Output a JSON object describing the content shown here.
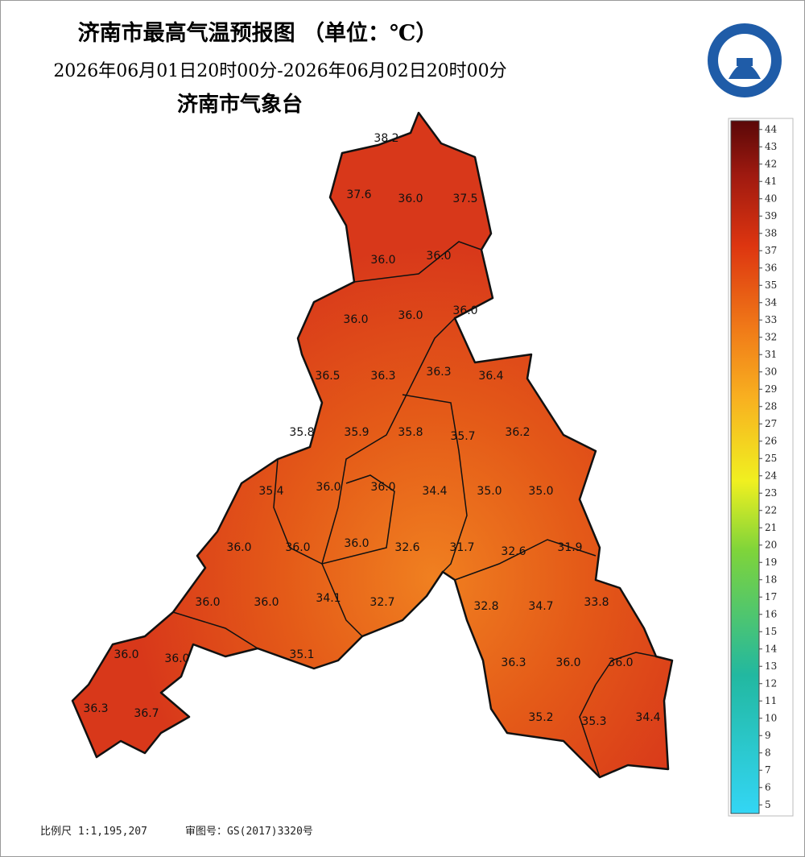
{
  "header": {
    "title": "济南市最高气温预报图 （单位：℃）",
    "subtitle": "2026年06月01日20时00分-2026年06月02日20时00分",
    "org": "济南市气象台"
  },
  "stations": [
    "38.2",
    "37.6",
    "36.0",
    "37.5",
    "36.0",
    "36.0",
    "36.0",
    "36.0",
    "36.0",
    "36.5",
    "36.3",
    "36.3",
    "36.4",
    "35.8",
    "35.9",
    "35.8",
    "35.7",
    "36.2",
    "35.4",
    "36.0",
    "36.0",
    "34.4",
    "35.0",
    "35.0",
    "36.0",
    "36.0",
    "36.0",
    "32.6",
    "31.7",
    "32.6",
    "31.9",
    "36.0",
    "36.0",
    "34.1",
    "32.7",
    "32.8",
    "34.7",
    "33.8",
    "36.0",
    "36.0",
    "35.1",
    "36.3",
    "36.0",
    "36.0",
    "36.3",
    "36.7",
    "35.2",
    "35.3",
    "34.4"
  ],
  "colorbar": {
    "ticks": [
      44,
      43,
      42,
      41,
      40,
      39,
      38,
      37,
      36,
      35,
      34,
      33,
      32,
      31,
      30,
      29,
      28,
      27,
      26,
      25,
      24,
      23,
      22,
      21,
      20,
      19,
      18,
      17,
      16,
      15,
      14,
      13,
      12,
      11,
      10,
      9,
      8,
      7,
      6,
      5
    ]
  },
  "footer": {
    "scale": "比例尺 1:1,195,207",
    "approval": "审图号：GS(2017)3320号"
  }
}
